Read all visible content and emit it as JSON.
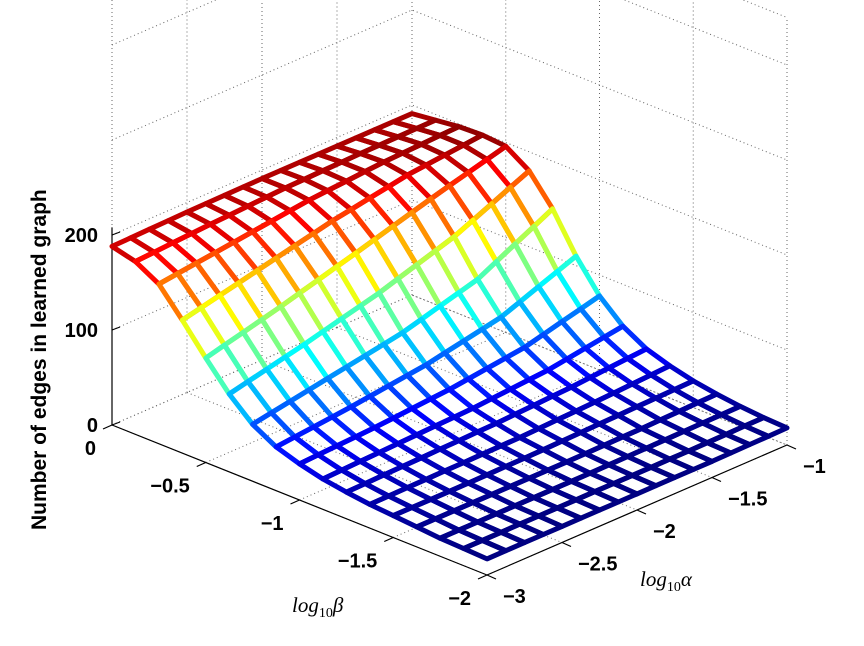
{
  "chart_data": {
    "type": "surface",
    "title": "",
    "xlabel": {
      "base": "log",
      "sub": "10",
      "sym": "β"
    },
    "ylabel": {
      "base": "log",
      "sub": "10",
      "sym": "α"
    },
    "zlabel": "Number of edges in learned graph",
    "xlim": [
      0,
      -2
    ],
    "ylim": [
      -3,
      -1
    ],
    "zlim": [
      0,
      200
    ],
    "x_ticks": [
      {
        "value": 0,
        "label": "0"
      },
      {
        "value": -0.5,
        "label": "−0.5"
      },
      {
        "value": -1,
        "label": "−1"
      },
      {
        "value": -1.5,
        "label": "−1.5"
      },
      {
        "value": -2,
        "label": "−2"
      }
    ],
    "y_ticks": [
      {
        "value": -3,
        "label": "−3"
      },
      {
        "value": -2.5,
        "label": "−2.5"
      },
      {
        "value": -2,
        "label": "−2"
      },
      {
        "value": -1.5,
        "label": "−1.5"
      },
      {
        "value": -1,
        "label": "−1"
      }
    ],
    "z_ticks": [
      {
        "value": 0,
        "label": "0"
      },
      {
        "value": 100,
        "label": "100"
      },
      {
        "value": 200,
        "label": "200"
      }
    ],
    "grid": true,
    "colormap": "jet",
    "surface": {
      "beta": [
        0,
        -0.125,
        -0.25,
        -0.375,
        -0.5,
        -0.625,
        -0.75,
        -0.875,
        -1,
        -1.125,
        -1.25,
        -1.375,
        -1.5,
        -1.625,
        -1.75,
        -1.875,
        -2
      ],
      "alpha_points": [
        -3,
        -2.5,
        -2,
        -1.5,
        -1
      ],
      "edges_by_alpha": [
        [
          188,
          182,
          168,
          140,
          110,
          82,
          60,
          46,
          38,
          32,
          28,
          25,
          23,
          21,
          19,
          18,
          17
        ],
        [
          190,
          187,
          178,
          158,
          130,
          100,
          74,
          54,
          42,
          35,
          30,
          26,
          23,
          21,
          19,
          18,
          17
        ],
        [
          191,
          191,
          188,
          176,
          152,
          120,
          88,
          64,
          48,
          38,
          32,
          27,
          24,
          21,
          19,
          18,
          17
        ],
        [
          191,
          193,
          194,
          190,
          175,
          145,
          110,
          80,
          58,
          44,
          36,
          30,
          26,
          22,
          20,
          18,
          17
        ],
        [
          191,
          194,
          197,
          198,
          196,
          180,
          150,
          110,
          78,
          56,
          42,
          34,
          28,
          24,
          21,
          19,
          18
        ]
      ]
    }
  }
}
